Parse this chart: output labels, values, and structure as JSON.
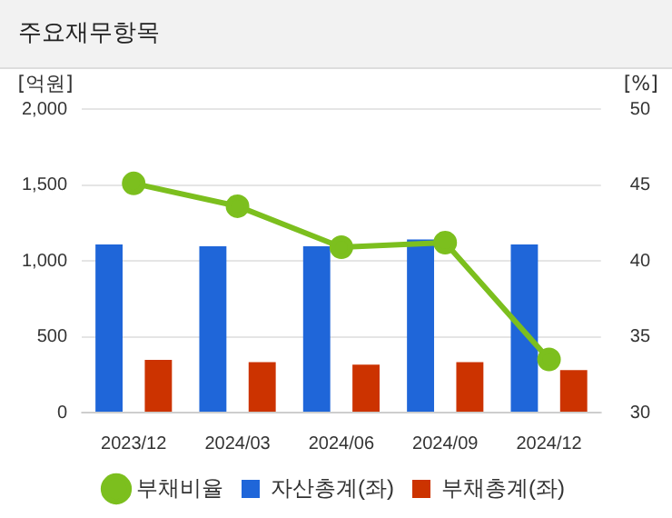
{
  "chart_data": {
    "type": "bar",
    "title": "주요재무항목",
    "ylabel": "[억원]",
    "y2label": "[%]",
    "categories": [
      "2023/12",
      "2024/03",
      "2024/06",
      "2024/09",
      "2024/12"
    ],
    "series": [
      {
        "name": "자산총계(좌)",
        "color": "#1f66d9",
        "values": [
          1108,
          1096,
          1096,
          1140,
          1108
        ]
      },
      {
        "name": "부채총계(좌)",
        "color": "#cc3300",
        "values": [
          348,
          332,
          316,
          332,
          280
        ]
      },
      {
        "name": "부채비율",
        "type": "line",
        "axis": "y2",
        "color": "#7cbf1e",
        "values": [
          45.1,
          43.6,
          40.9,
          41.2,
          33.5
        ]
      }
    ],
    "ylim": [
      0,
      2000
    ],
    "yticks": [
      0,
      {
        "value": 500,
        "label": "500"
      },
      {
        "value": 1000,
        "label": "1,000"
      },
      {
        "value": 1500,
        "label": "1,500"
      },
      {
        "value": 2000,
        "label": "2,000"
      }
    ],
    "y2lim": [
      30,
      50
    ],
    "y2ticks": [
      30,
      35,
      40,
      45,
      50
    ],
    "grid": "y",
    "legend": "bottom",
    "marker": "circle",
    "line_style": "solid"
  }
}
